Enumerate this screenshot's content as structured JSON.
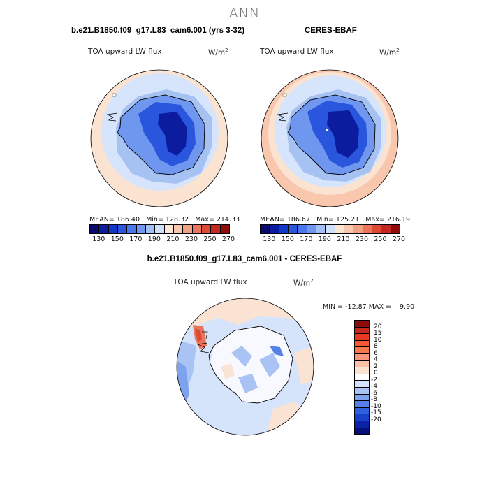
{
  "figure": {
    "title": "ANN"
  },
  "panels": {
    "model": {
      "title": "b.e21.B1850.f09_g17.L83_cam6.001 (yrs 3-32)",
      "variable": "TOA upward LW flux",
      "units": "W/m",
      "units_sup": "2",
      "stats": "MEAN= 186.40   Min= 128.32   Max= 214.33"
    },
    "obs": {
      "title": "CERES-EBAF",
      "variable": "TOA upward LW flux",
      "units": "W/m",
      "units_sup": "2",
      "stats": "MEAN= 186.67   Min= 125.21   Max= 216.19"
    },
    "diff": {
      "title": "b.e21.B1850.f09_g17.L83_cam6.001 - CERES-EBAF",
      "variable": "TOA upward LW flux",
      "units": "W/m",
      "units_sup": "2",
      "stats": "MIN = -12.87 MAX =    9.90"
    }
  },
  "colorbars": {
    "abs": {
      "colors": [
        "#0a0a6e",
        "#0b1c9e",
        "#1037c7",
        "#2a55dd",
        "#4a77ea",
        "#6f97f0",
        "#a3bff5",
        "#cfe0fa",
        "#fbe6d6",
        "#f8c7ad",
        "#f1a184",
        "#e9765a",
        "#dc4a33",
        "#c5281f",
        "#8e0c0c"
      ],
      "ticks": [
        "130",
        "150",
        "170",
        "190",
        "210",
        "230",
        "250",
        "270"
      ]
    },
    "diff": {
      "colors": [
        "#8e0c0c",
        "#c5281f",
        "#e63b22",
        "#f25a36",
        "#f5784f",
        "#f7987a",
        "#f9c0a6",
        "#fbe3d3",
        "#ffffff",
        "#d5e4fa",
        "#a9c4f4",
        "#7da3ee",
        "#5580e6",
        "#3160dc",
        "#1940c9",
        "#0b22a6",
        "#06107a"
      ],
      "ticks": [
        "20",
        "15",
        "10",
        "8",
        "6",
        "4",
        "2",
        "0",
        "-2",
        "-4",
        "-6",
        "-8",
        "-10",
        "-15",
        "-20"
      ]
    }
  },
  "map_colors": {
    "ocean_warm": "#fbe3d1",
    "ocean_cool": "#d6e5fb",
    "coast_blue": "#a6c2f3",
    "interior_1": "#6f97f0",
    "interior_2": "#2a55dd",
    "interior_3": "#0b1c9e",
    "diff_neutral": "#f7f9ff",
    "diff_blue": "#8aadf0",
    "diff_red": "#e9765a"
  }
}
